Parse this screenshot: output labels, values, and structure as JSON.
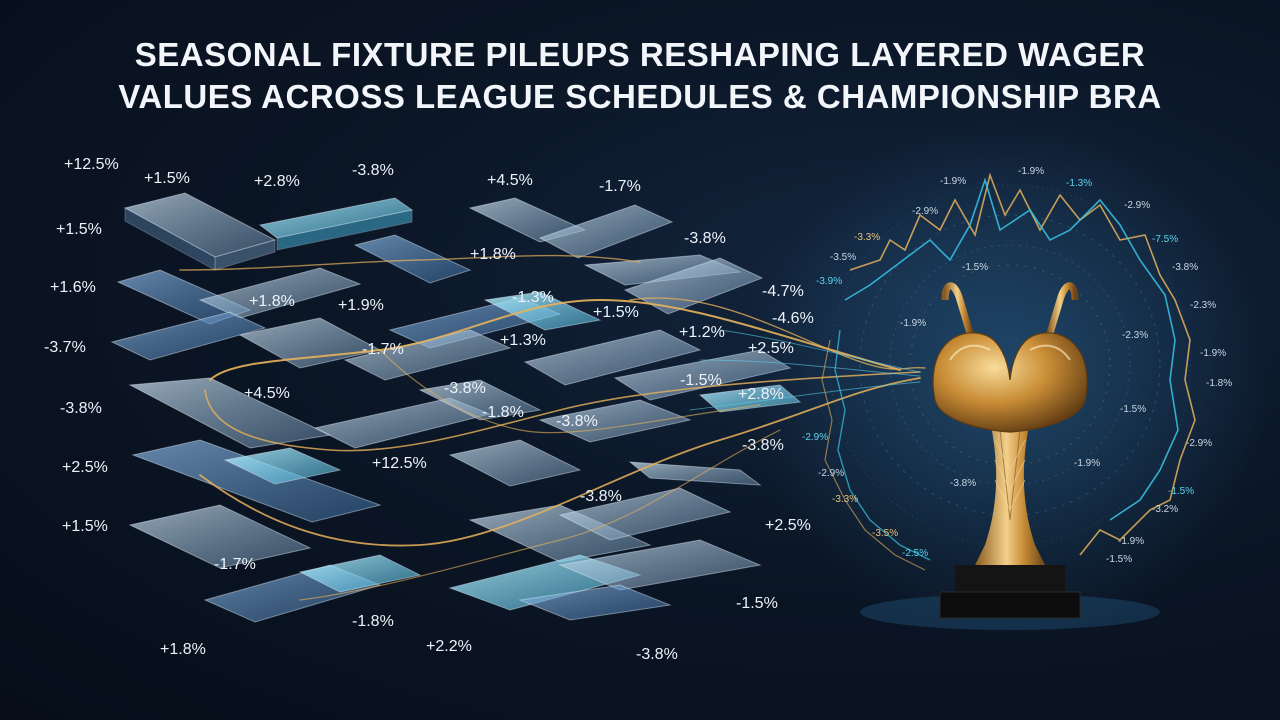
{
  "title": {
    "line1": "SEASONAL FIXTURE PILEUPS RESHAPING LAYERED WAGER",
    "line2": "VALUES ACROSS LEAGUE SCHEDULES & CHAMPIONSHIP BRA"
  },
  "left_labels": [
    "+12.5%",
    "+1.5%",
    "+2.8%",
    "-3.8%",
    "+4.5%",
    "-1.7%",
    "+1.5%",
    "-3.8%",
    "+1.8%",
    "+1.6%",
    "-4.7%",
    "+1.8%",
    "+1.9%",
    "-1.3%",
    "+1.5%",
    "-4.6%",
    "-3.7%",
    "-1.7%",
    "+1.3%",
    "+1.2%",
    "+2.5%",
    "-1.5%",
    "+4.5%",
    "-3.8%",
    "-3.8%",
    "-1.8%",
    "+2.8%",
    "-3.8%",
    "-3.8%",
    "+2.5%",
    "+12.5%",
    "-3.8%",
    "+1.5%",
    "+2.5%",
    "-1.7%",
    "-1.8%",
    "-1.5%",
    "+1.8%",
    "+2.2%",
    "-3.8%"
  ],
  "ring_labels": [
    "-1.9%",
    "-1.9%",
    "-1.3%",
    "-2.9%",
    "-2.9%",
    "-3.3%",
    "-7.5%",
    "-3.5%",
    "-1.5%",
    "-3.8%",
    "-3.9%",
    "-2.3%",
    "-1.9%",
    "-2.3%",
    "-1.9%",
    "-1.8%",
    "-1.5%",
    "-2.9%",
    "-2.9%",
    "-1.9%",
    "-2.9%",
    "-3.3%",
    "-3.8%",
    "-1.5%",
    "-3.5%",
    "-2.5%",
    "-1.5%",
    "-3.2%",
    "-1.9%"
  ],
  "colors": {
    "gold": "#e7b25a",
    "cyan": "#39c6e8",
    "glass": "#a9c6dd"
  },
  "icons": [
    "trophy-icon"
  ]
}
